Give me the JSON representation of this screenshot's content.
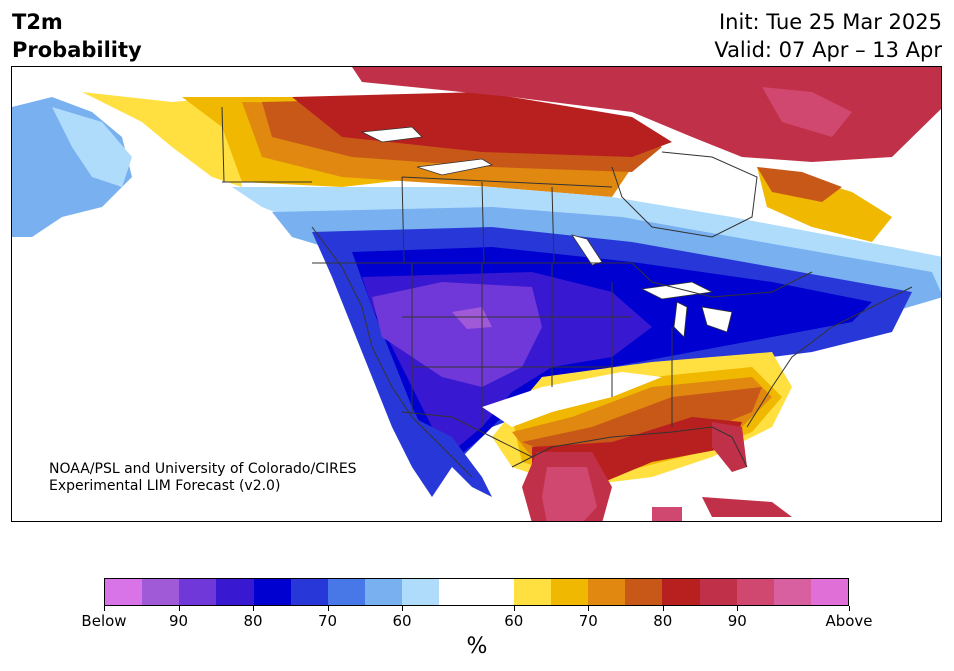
{
  "title": {
    "left_line1": "T2m",
    "left_line2": "Probability",
    "right_line1": "Init: Tue 25 Mar 2025",
    "right_line2": "Valid: 07 Apr – 13 Apr"
  },
  "credit": {
    "line1": "NOAA/PSL and University of Colorado/CIRES",
    "line2": "Experimental LIM Forecast (v2.0)"
  },
  "colorbar": {
    "colors": [
      "#d874e8",
      "#a05ad8",
      "#7038d8",
      "#3818d0",
      "#0000d0",
      "#2838d8",
      "#4878e8",
      "#78b0f0",
      "#b0dcfc",
      "#ffffff",
      "#ffffff",
      "#ffe040",
      "#f0b800",
      "#e08810",
      "#c85818",
      "#b82020",
      "#c03048",
      "#d04870",
      "#d860a0",
      "#e070d8"
    ],
    "labels": [
      "Below",
      "90",
      "80",
      "70",
      "60",
      "60",
      "70",
      "80",
      "90",
      "Above"
    ],
    "unit": "%"
  },
  "map": {
    "region": "North America",
    "palette": {
      "below_strong": "#7038d8",
      "below": "#3818d0",
      "below_mid": "#0000d0",
      "below_light": "#2838d8",
      "below_lighter": "#78b0f0",
      "below_faint": "#b0dcfc",
      "above_faint": "#ffe040",
      "above": "#f0b800",
      "above_mid": "#e08810",
      "above_strong": "#c85818",
      "above_stronger": "#b82020",
      "above_max": "#c03048",
      "above_pink": "#d04870",
      "land_border": "#333333",
      "water": "#ffffff"
    }
  }
}
